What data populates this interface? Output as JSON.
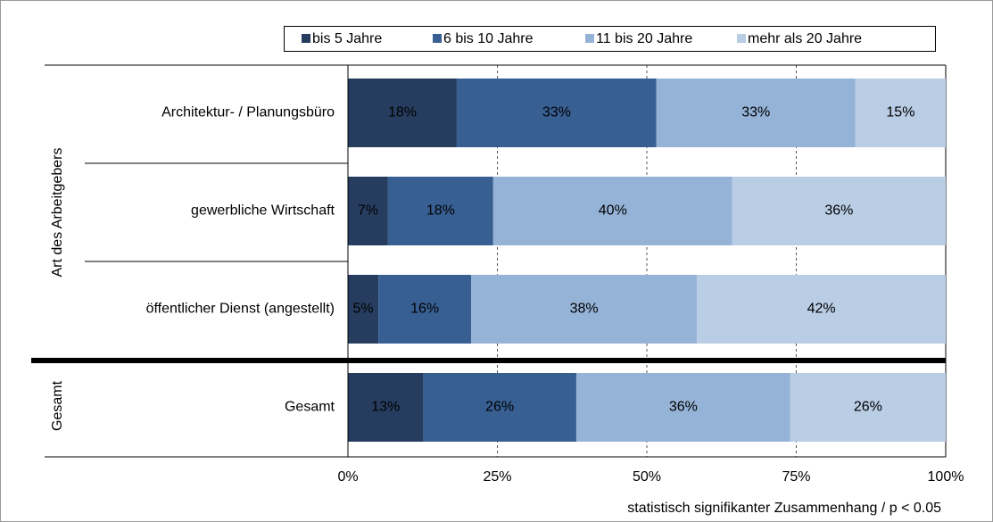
{
  "chart_data": {
    "type": "bar",
    "orientation": "horizontal",
    "stacked": true,
    "group_labels": [
      "Art des Arbeitgebers",
      "Gesamt"
    ],
    "categories": [
      "Architektur- / Planungsbüro",
      "gewerbliche Wirtschaft",
      "öffentlicher Dienst (angestellt)",
      "Gesamt"
    ],
    "series": [
      {
        "name": "bis 5 Jahre",
        "color": "#263d5f",
        "values": [
          18.2,
          6.7,
          5.1,
          12.6
        ],
        "value_labels": [
          "18%",
          "7%",
          "5%",
          "13%"
        ]
      },
      {
        "name": "6 bis 10 Jahre",
        "color": "#375f92",
        "values": [
          33.4,
          17.6,
          15.5,
          25.6
        ],
        "value_labels": [
          "33%",
          "18%",
          "16%",
          "26%"
        ]
      },
      {
        "name": "11 bis 20 Jahre",
        "color": "#95b3d7",
        "values": [
          33.3,
          40.0,
          37.8,
          35.8
        ],
        "value_labels": [
          "33%",
          "40%",
          "38%",
          "36%"
        ]
      },
      {
        "name": "mehr als 20 Jahre",
        "color": "#b9cde5",
        "values": [
          15.1,
          35.7,
          41.6,
          26.0
        ],
        "value_labels": [
          "15%",
          "36%",
          "42%",
          "26%"
        ]
      }
    ],
    "xlim": [
      0,
      100
    ],
    "xticks": [
      {
        "value": 0,
        "label": "0%"
      },
      {
        "value": 25,
        "label": "25%"
      },
      {
        "value": 50,
        "label": "50%"
      },
      {
        "value": 75,
        "label": "75%"
      },
      {
        "value": 100,
        "label": "100%"
      }
    ],
    "grid": true,
    "legend": "top",
    "note": "statistisch signifikanter Zusammenhang / p < 0.05"
  }
}
